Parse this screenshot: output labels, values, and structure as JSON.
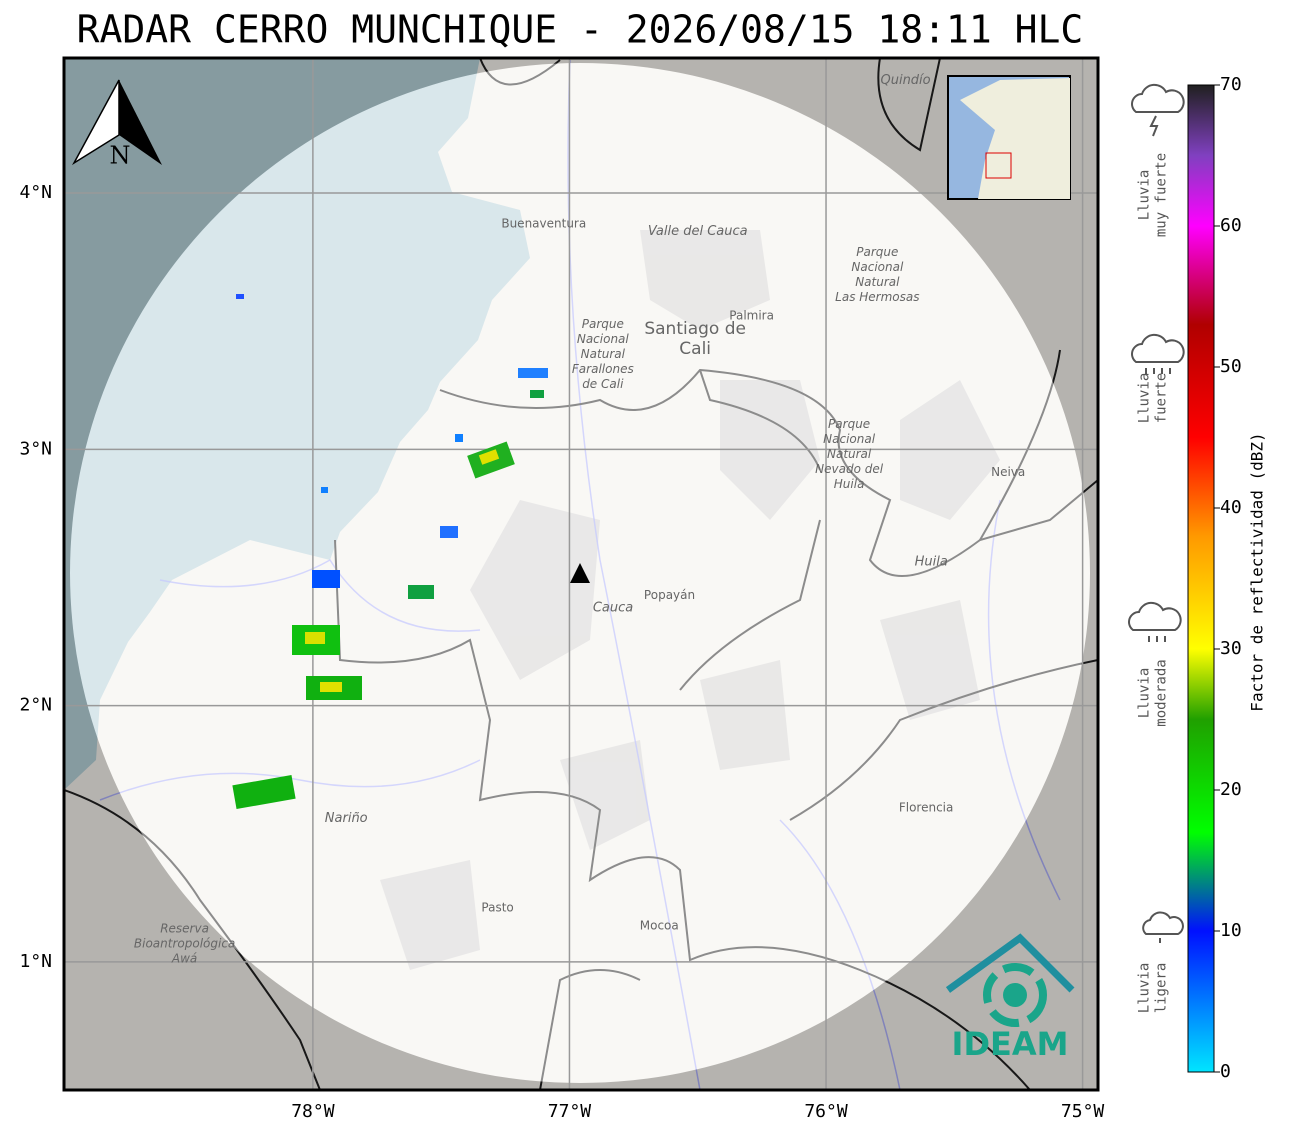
{
  "title": "RADAR CERRO MUNCHIQUE - 2026/08/15 18:11 HLC",
  "map": {
    "lonlim": [
      -78.97,
      -74.94
    ],
    "latlim": [
      0.5,
      4.527
    ],
    "lon_ticks": [
      {
        "value": -78,
        "label": "78°W"
      },
      {
        "value": -77,
        "label": "77°W"
      },
      {
        "value": -76,
        "label": "76°W"
      },
      {
        "value": -75,
        "label": "75°W"
      }
    ],
    "lat_ticks": [
      {
        "value": 1,
        "label": "1°N"
      },
      {
        "value": 2,
        "label": "2°N"
      },
      {
        "value": 3,
        "label": "3°N"
      },
      {
        "value": 4,
        "label": "4°N"
      }
    ],
    "north_label": "N",
    "cities": [
      {
        "lines": [
          "Buenaventura"
        ],
        "lon": -77.1,
        "lat": 3.88
      },
      {
        "lines": [
          "Palmira"
        ],
        "lon": -76.29,
        "lat": 3.52
      },
      {
        "lines": [
          "Santiago de",
          "Cali"
        ],
        "lon": -76.51,
        "lat": 3.43
      },
      {
        "lines": [
          "Neiva"
        ],
        "lon": -75.29,
        "lat": 2.91
      },
      {
        "lines": [
          "Popayán"
        ],
        "lon": -76.61,
        "lat": 2.43
      },
      {
        "lines": [
          "Pasto"
        ],
        "lon": -77.28,
        "lat": 1.21
      },
      {
        "lines": [
          "Mocoa"
        ],
        "lon": -76.65,
        "lat": 1.14
      },
      {
        "lines": [
          "Florencia"
        ],
        "lon": -75.61,
        "lat": 1.6
      }
    ],
    "regions": [
      {
        "lines": [
          "Valle del Cauca"
        ],
        "lon": -76.5,
        "lat": 3.85
      },
      {
        "lines": [
          "Huila"
        ],
        "lon": -75.59,
        "lat": 2.56
      },
      {
        "lines": [
          "Cauca"
        ],
        "lon": -76.83,
        "lat": 2.38
      },
      {
        "lines": [
          "Nariño"
        ],
        "lon": -77.87,
        "lat": 1.56
      },
      {
        "lines": [
          "Quindío"
        ],
        "lon": -75.69,
        "lat": 4.44
      }
    ],
    "parks": [
      {
        "lines": [
          "Parque",
          "Nacional",
          "Natural",
          "Farallones",
          "de Cali"
        ],
        "lon": -76.87,
        "lat": 3.37
      },
      {
        "lines": [
          "Parque",
          "Nacional",
          "Natural",
          "Las Hermosas"
        ],
        "lon": -75.8,
        "lat": 3.68
      },
      {
        "lines": [
          "Parque",
          "Nacional",
          "Natural",
          "Nevado del",
          "Huila"
        ],
        "lon": -75.91,
        "lat": 2.98
      },
      {
        "lines": [
          "Reserva",
          "Bioantropológica",
          "Awá"
        ],
        "lon": -78.5,
        "lat": 1.07
      }
    ],
    "logo": "IDEAM"
  },
  "colorbar": {
    "label": "Factor de reflectividad (dBZ)",
    "range": [
      0,
      70
    ],
    "ticks": [
      0,
      10,
      20,
      30,
      40,
      50,
      60,
      70
    ],
    "stops": [
      {
        "value": 0,
        "color": "#00e5ff"
      },
      {
        "value": 10,
        "color": "#0010ff"
      },
      {
        "value": 17,
        "color": "#00ff00"
      },
      {
        "value": 25,
        "color": "#20a000"
      },
      {
        "value": 30,
        "color": "#ffff00"
      },
      {
        "value": 38,
        "color": "#ff9900"
      },
      {
        "value": 45,
        "color": "#ff0000"
      },
      {
        "value": 53,
        "color": "#b00000"
      },
      {
        "value": 60,
        "color": "#ff00ff"
      },
      {
        "value": 65,
        "color": "#8040c0"
      },
      {
        "value": 70,
        "color": "#202020"
      }
    ]
  },
  "rain_levels": [
    {
      "lines": [
        "Lluvia",
        "muy fuerte"
      ]
    },
    {
      "lines": [
        "Lluvia",
        "fuerte"
      ]
    },
    {
      "lines": [
        "Lluvia",
        "moderada"
      ]
    },
    {
      "lines": [
        "Lluvia",
        "ligera"
      ]
    }
  ]
}
